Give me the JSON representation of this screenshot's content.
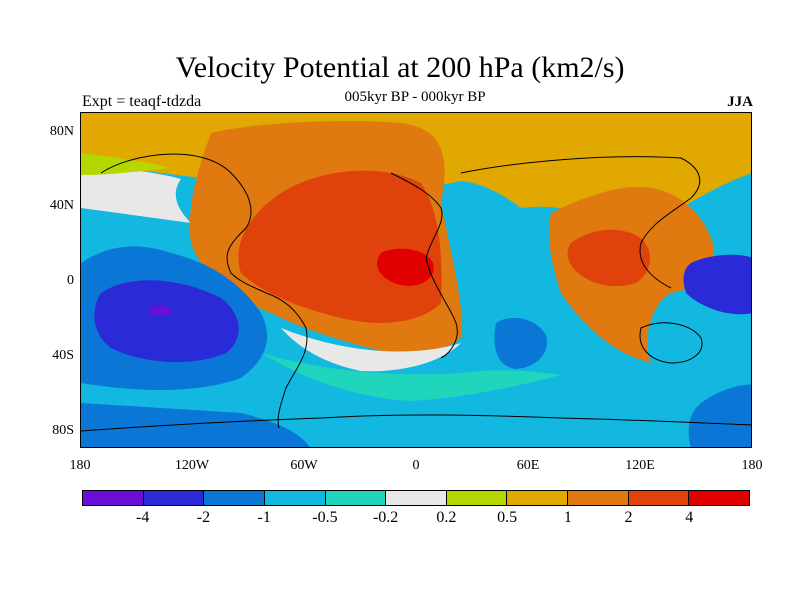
{
  "title": "Velocity Potential at 200 hPa (km2/s)",
  "subtitle": "005kyr BP - 000kyr BP",
  "left_label": "Expt = teaqf-tdzda",
  "right_label": "JJA",
  "lat_ticks": [
    "80N",
    "40N",
    "0",
    "40S",
    "80S"
  ],
  "lon_ticks": [
    "180",
    "120W",
    "60W",
    "0",
    "60E",
    "120E",
    "180"
  ],
  "colorbar": {
    "colors": [
      "#6a0fd6",
      "#2a2bd6",
      "#0a76d6",
      "#12b8e0",
      "#1fd6bd",
      "#e8e8e8",
      "#b6d600",
      "#e0a800",
      "#e07a10",
      "#e0420c",
      "#e00000"
    ],
    "labels": [
      "-4",
      "-2",
      "-1",
      "-0.5",
      "-0.2",
      "0.2",
      "0.5",
      "1",
      "2",
      "4"
    ]
  }
}
